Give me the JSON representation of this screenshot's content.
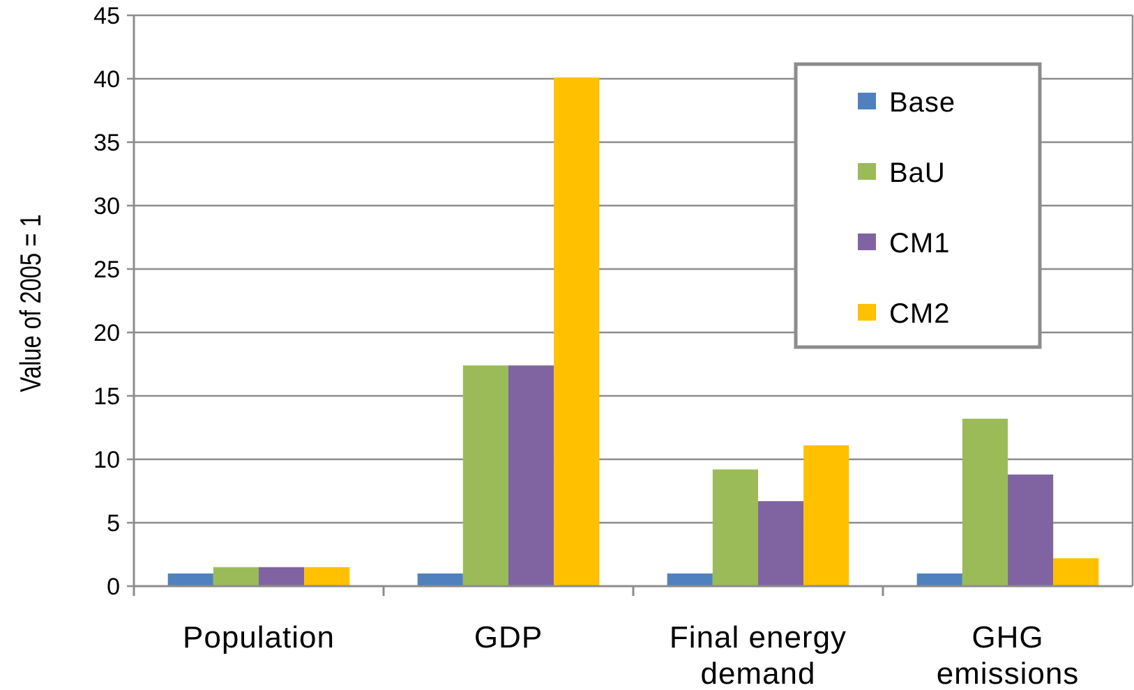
{
  "chart_data": {
    "type": "bar",
    "ylabel": "Value of 2005 = 1",
    "xlabel": "",
    "ylim": [
      0,
      45
    ],
    "yticks": [
      0,
      5,
      10,
      15,
      20,
      25,
      30,
      35,
      40,
      45
    ],
    "grid": true,
    "legend_position": "top-right",
    "categories": [
      [
        "Population"
      ],
      [
        "GDP"
      ],
      [
        "Final energy",
        "demand"
      ],
      [
        "GHG",
        "emissions"
      ]
    ],
    "series": [
      {
        "name": "Base",
        "color": "#4F81BD",
        "values": [
          1,
          1,
          1,
          1
        ]
      },
      {
        "name": "BaU",
        "color": "#9BBB59",
        "values": [
          1.5,
          17.4,
          9.2,
          13.2
        ]
      },
      {
        "name": "CM1",
        "color": "#8064A2",
        "values": [
          1.5,
          17.4,
          6.7,
          8.8
        ]
      },
      {
        "name": "CM2",
        "color": "#FFC000",
        "values": [
          1.5,
          40.1,
          11.1,
          2.2
        ]
      }
    ]
  }
}
